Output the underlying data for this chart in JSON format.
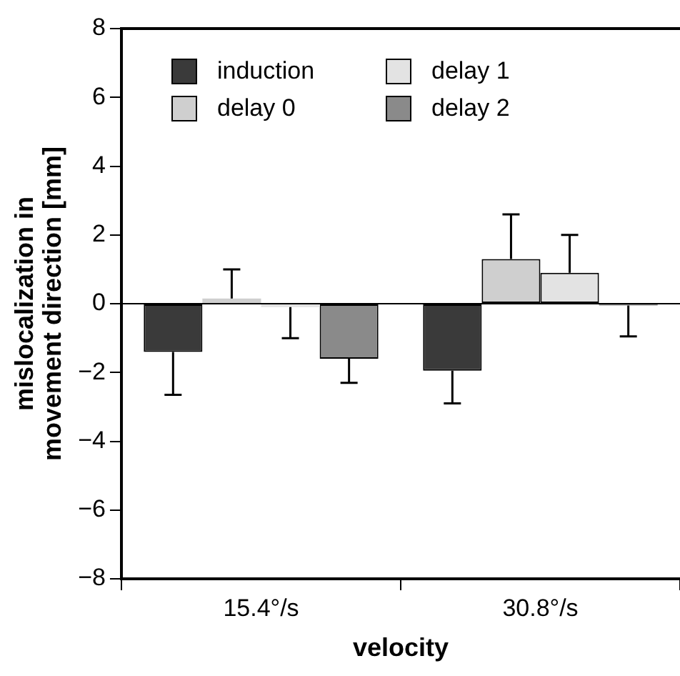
{
  "chart_data": {
    "type": "bar",
    "xlabel": "velocity",
    "ylabel": "mislocalization in\nmovement direction [mm]",
    "categories": [
      "15.4°/s",
      "30.8°/s"
    ],
    "series": [
      {
        "name": "induction",
        "color": "#3a3a3a",
        "values": [
          -1.4,
          -1.95
        ],
        "errors": [
          [
            -2.65,
            -1.4
          ],
          [
            -2.9,
            -1.95
          ]
        ]
      },
      {
        "name": "delay 0",
        "color": "#cfcfcf",
        "values": [
          0.15,
          1.3
        ],
        "errors": [
          [
            0.15,
            1.0
          ],
          [
            1.3,
            2.6
          ]
        ]
      },
      {
        "name": "delay 1",
        "color": "#e3e3e3",
        "values": [
          -0.1,
          0.9
        ],
        "errors": [
          [
            -1.0,
            -0.1
          ],
          [
            0.9,
            2.0
          ]
        ]
      },
      {
        "name": "delay 2",
        "color": "#8a8a8a",
        "values": [
          -1.6,
          -0.05
        ],
        "errors": [
          [
            -2.3,
            -1.6
          ],
          [
            -0.95,
            -0.05
          ]
        ]
      }
    ],
    "ref_lines": [
      {
        "axis": "y",
        "value": 0
      }
    ],
    "ylim": [
      -8,
      8
    ],
    "yticks": [
      -8,
      -6,
      -4,
      -2,
      0,
      2,
      4,
      6,
      8
    ],
    "grid": false,
    "legend": "top left"
  }
}
